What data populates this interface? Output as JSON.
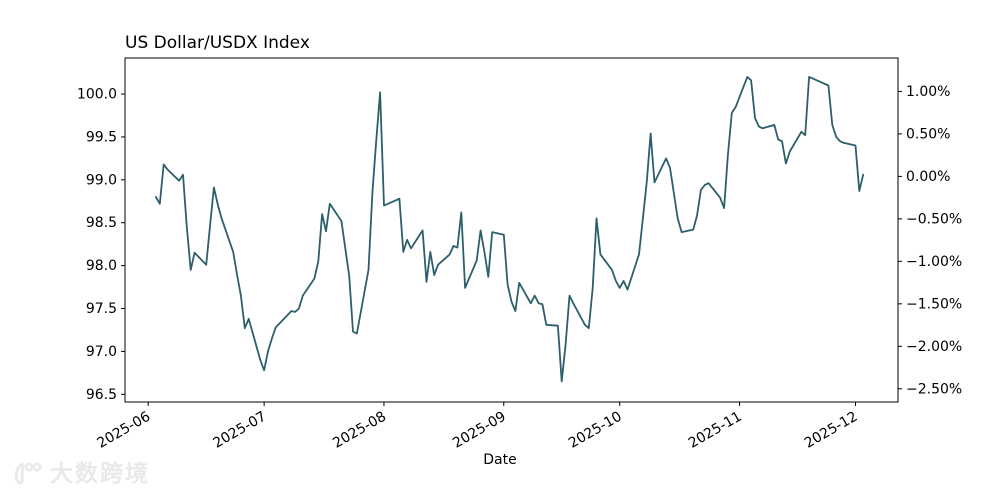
{
  "chart_data": {
    "type": "line",
    "title": "US Dollar/USDX Index",
    "xlabel": "Date",
    "ylabel": "",
    "grid": false,
    "legend": null,
    "line_color": "#2d5f6b",
    "xlim": [
      "2025-05-26",
      "2025-12-12"
    ],
    "ylim": [
      96.41,
      100.42
    ],
    "x_ticks": [
      {
        "date": "2025-06-01",
        "label": "2025-06"
      },
      {
        "date": "2025-07-01",
        "label": "2025-07"
      },
      {
        "date": "2025-08-01",
        "label": "2025-08"
      },
      {
        "date": "2025-09-01",
        "label": "2025-09"
      },
      {
        "date": "2025-10-01",
        "label": "2025-10"
      },
      {
        "date": "2025-11-01",
        "label": "2025-11"
      },
      {
        "date": "2025-12-01",
        "label": "2025-12"
      }
    ],
    "y_ticks_left": [
      {
        "value": 96.5,
        "label": "96.5"
      },
      {
        "value": 97.0,
        "label": "97.0"
      },
      {
        "value": 97.5,
        "label": "97.5"
      },
      {
        "value": 98.0,
        "label": "98.0"
      },
      {
        "value": 98.5,
        "label": "98.5"
      },
      {
        "value": 99.0,
        "label": "99.0"
      },
      {
        "value": 99.5,
        "label": "99.5"
      },
      {
        "value": 100.0,
        "label": "100.0"
      }
    ],
    "y_right_reference": 99.04,
    "y_ticks_right": [
      {
        "pct": 1.0,
        "label": "1.00%"
      },
      {
        "pct": 0.5,
        "label": "0.50%"
      },
      {
        "pct": 0.0,
        "label": "0.00%"
      },
      {
        "pct": -0.5,
        "label": "−0.50%"
      },
      {
        "pct": -1.0,
        "label": "−1.00%"
      },
      {
        "pct": -1.5,
        "label": "−1.50%"
      },
      {
        "pct": -2.0,
        "label": "−2.00%"
      },
      {
        "pct": -2.5,
        "label": "−2.50%"
      }
    ],
    "series": [
      {
        "name": "USDX",
        "x": [
          "2025-06-03",
          "2025-06-04",
          "2025-06-05",
          "2025-06-06",
          "2025-06-09",
          "2025-06-10",
          "2025-06-11",
          "2025-06-12",
          "2025-06-13",
          "2025-06-16",
          "2025-06-17",
          "2025-06-18",
          "2025-06-19",
          "2025-06-20",
          "2025-06-23",
          "2025-06-24",
          "2025-06-25",
          "2025-06-26",
          "2025-06-27",
          "2025-06-30",
          "2025-07-01",
          "2025-07-02",
          "2025-07-03",
          "2025-07-04",
          "2025-07-07",
          "2025-07-08",
          "2025-07-09",
          "2025-07-10",
          "2025-07-11",
          "2025-07-14",
          "2025-07-15",
          "2025-07-16",
          "2025-07-17",
          "2025-07-18",
          "2025-07-21",
          "2025-07-22",
          "2025-07-23",
          "2025-07-24",
          "2025-07-25",
          "2025-07-28",
          "2025-07-29",
          "2025-07-30",
          "2025-07-31",
          "2025-08-01",
          "2025-08-04",
          "2025-08-05",
          "2025-08-06",
          "2025-08-07",
          "2025-08-08",
          "2025-08-11",
          "2025-08-12",
          "2025-08-13",
          "2025-08-14",
          "2025-08-15",
          "2025-08-18",
          "2025-08-19",
          "2025-08-20",
          "2025-08-21",
          "2025-08-22",
          "2025-08-25",
          "2025-08-26",
          "2025-08-27",
          "2025-08-28",
          "2025-08-29",
          "2025-09-01",
          "2025-09-02",
          "2025-09-03",
          "2025-09-04",
          "2025-09-05",
          "2025-09-08",
          "2025-09-09",
          "2025-09-10",
          "2025-09-11",
          "2025-09-12",
          "2025-09-15",
          "2025-09-16",
          "2025-09-17",
          "2025-09-18",
          "2025-09-19",
          "2025-09-22",
          "2025-09-23",
          "2025-09-24",
          "2025-09-25",
          "2025-09-26",
          "2025-09-29",
          "2025-09-30",
          "2025-10-01",
          "2025-10-02",
          "2025-10-03",
          "2025-10-06",
          "2025-10-07",
          "2025-10-08",
          "2025-10-09",
          "2025-10-10",
          "2025-10-13",
          "2025-10-14",
          "2025-10-15",
          "2025-10-16",
          "2025-10-17",
          "2025-10-20",
          "2025-10-21",
          "2025-10-22",
          "2025-10-23",
          "2025-10-24",
          "2025-10-27",
          "2025-10-28",
          "2025-10-29",
          "2025-10-30",
          "2025-10-31",
          "2025-11-03",
          "2025-11-04",
          "2025-11-05",
          "2025-11-06",
          "2025-11-07",
          "2025-11-10",
          "2025-11-11",
          "2025-11-12",
          "2025-11-13",
          "2025-11-14",
          "2025-11-17",
          "2025-11-18",
          "2025-11-19",
          "2025-11-20",
          "2025-11-21",
          "2025-11-24",
          "2025-11-25",
          "2025-11-26",
          "2025-11-27",
          "2025-11-28",
          "2025-12-01",
          "2025-12-02",
          "2025-12-03"
        ],
        "values": [
          98.8,
          98.72,
          99.18,
          99.12,
          98.99,
          99.06,
          98.45,
          97.95,
          98.15,
          98.01,
          98.46,
          98.91,
          98.71,
          98.55,
          98.16,
          97.89,
          97.65,
          97.27,
          97.38,
          96.9,
          96.78,
          97.0,
          97.15,
          97.28,
          97.42,
          97.47,
          97.46,
          97.5,
          97.65,
          97.85,
          98.05,
          98.6,
          98.4,
          98.72,
          98.52,
          98.2,
          97.88,
          97.23,
          97.21,
          97.95,
          98.85,
          99.45,
          100.02,
          98.7,
          98.76,
          98.78,
          98.16,
          98.3,
          98.2,
          98.41,
          97.81,
          98.16,
          97.89,
          98.01,
          98.13,
          98.23,
          98.21,
          98.62,
          97.74,
          98.06,
          98.41,
          98.16,
          97.87,
          98.39,
          98.36,
          97.78,
          97.58,
          97.47,
          97.8,
          97.56,
          97.65,
          97.56,
          97.55,
          97.31,
          97.3,
          96.65,
          97.08,
          97.65,
          97.56,
          97.31,
          97.27,
          97.74,
          98.55,
          98.13,
          97.95,
          97.82,
          97.74,
          97.82,
          97.72,
          98.13,
          98.55,
          98.98,
          99.54,
          98.97,
          99.25,
          99.14,
          98.85,
          98.55,
          98.39,
          98.42,
          98.58,
          98.88,
          98.94,
          98.96,
          98.79,
          98.67,
          99.29,
          99.78,
          99.85,
          100.2,
          100.16,
          99.72,
          99.62,
          99.6,
          99.64,
          99.47,
          99.45,
          99.19,
          99.33,
          99.56,
          99.52,
          100.2,
          100.18,
          100.16,
          100.1,
          99.64,
          99.5,
          99.45,
          99.43,
          99.4,
          98.87,
          99.06
        ]
      }
    ]
  },
  "watermark": {
    "text": "大数跨境"
  }
}
